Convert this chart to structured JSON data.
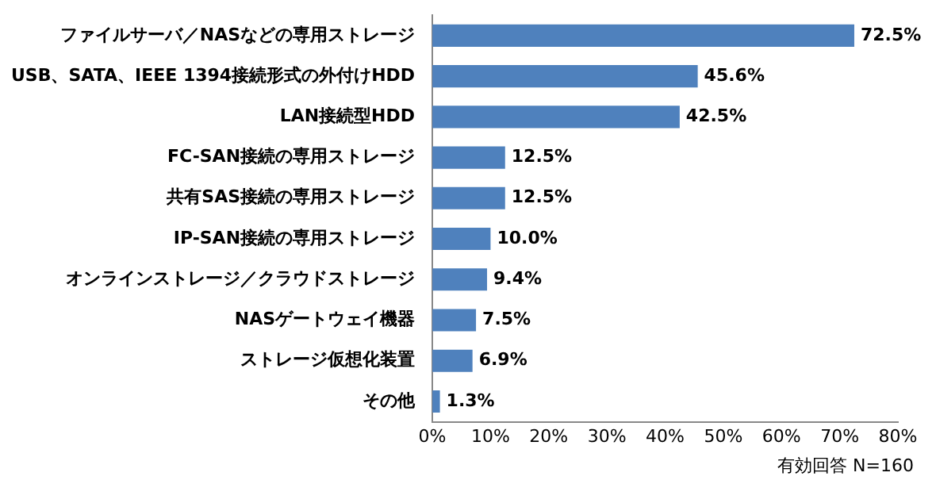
{
  "chart_data": {
    "type": "bar",
    "orientation": "horizontal",
    "categories": [
      "ファイルサーバ／NASなどの専用ストレージ",
      "USB、SATA、IEEE 1394接続形式の外付けHDD",
      "LAN接続型HDD",
      "FC-SAN接続の専用ストレージ",
      "共有SAS接続の専用ストレージ",
      "IP-SAN接続の専用ストレージ",
      "オンラインストレージ／クラウドストレージ",
      "NASゲートウェイ機器",
      "ストレージ仮想化装置",
      "その他"
    ],
    "values": [
      72.5,
      45.6,
      42.5,
      12.5,
      12.5,
      10.0,
      9.4,
      7.5,
      6.9,
      1.3
    ],
    "value_labels": [
      "72.5%",
      "45.6%",
      "42.5%",
      "12.5%",
      "12.5%",
      "10.0%",
      "9.4%",
      "7.5%",
      "6.9%",
      "1.3%"
    ],
    "color": "#4f81bd",
    "xlim": [
      0,
      80
    ],
    "xticks": [
      {
        "value": 0,
        "label": "0%"
      },
      {
        "value": 10,
        "label": "10%"
      },
      {
        "value": 20,
        "label": "20%"
      },
      {
        "value": 30,
        "label": "30%"
      },
      {
        "value": 40,
        "label": "40%"
      },
      {
        "value": 50,
        "label": "50%"
      },
      {
        "value": 60,
        "label": "60%"
      },
      {
        "value": 70,
        "label": "70%"
      },
      {
        "value": 80,
        "label": "80%"
      }
    ],
    "grid": false,
    "legend": false,
    "annotations": [
      "有効回答 N=160"
    ]
  }
}
